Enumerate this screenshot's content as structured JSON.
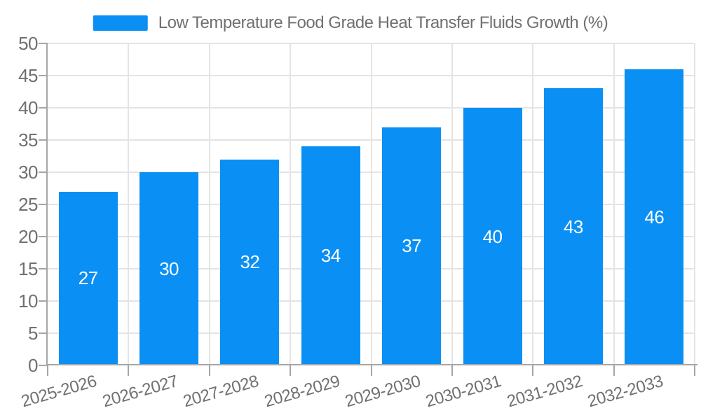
{
  "colors": {
    "bar": "#0A8FF4",
    "grid": "#E4E4E4",
    "axis": "#A6A6A6",
    "text": "#707070",
    "bar_label": "#FFFFFF",
    "background": "#FFFFFF"
  },
  "chart_data": {
    "type": "bar",
    "title": "",
    "legend_label": "Low Temperature Food Grade Heat Transfer Fluids Growth (%)",
    "legend_position": "top-center",
    "categories": [
      "2025-2026",
      "2026-2027",
      "2027-2028",
      "2028-2029",
      "2029-2030",
      "2030-2031",
      "2031-2032",
      "2032-2033"
    ],
    "values": [
      27,
      30,
      32,
      34,
      37,
      40,
      43,
      46
    ],
    "xlabel": "",
    "ylabel": "",
    "ylim": [
      0,
      50
    ],
    "yticks": [
      0,
      5,
      10,
      15,
      20,
      25,
      30,
      35,
      40,
      45,
      50
    ],
    "grid": true,
    "bar_value_labels": true,
    "x_label_rotation_deg": -16
  }
}
